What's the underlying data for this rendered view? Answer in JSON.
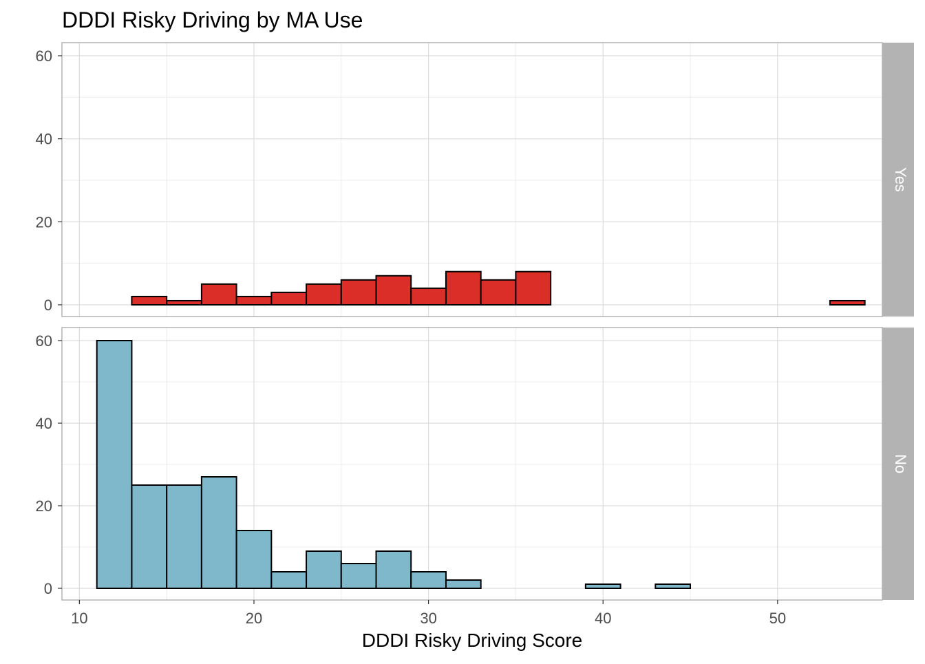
{
  "chart_data": {
    "type": "bar",
    "title": "DDDI Risky Driving by MA Use",
    "xlabel": "DDDI Risky Driving Score",
    "ylabel": "",
    "xlim": [
      10,
      55
    ],
    "ylim": [
      0,
      60
    ],
    "x_ticks": [
      10,
      20,
      30,
      40,
      50
    ],
    "y_ticks": [
      0,
      20,
      40,
      60
    ],
    "bin_edges": [
      11,
      13,
      15,
      17,
      19,
      21,
      23,
      25,
      27,
      29,
      31,
      33,
      35,
      37,
      39,
      41,
      43,
      45,
      47,
      49,
      51,
      53,
      55
    ],
    "grid": true,
    "legend": "none",
    "panels": [
      {
        "strip_label": "Yes",
        "color": "#dc2e29",
        "counts": [
          0,
          2,
          1,
          5,
          2,
          3,
          5,
          6,
          7,
          4,
          8,
          6,
          8,
          0,
          0,
          0,
          0,
          0,
          0,
          0,
          0,
          1
        ]
      },
      {
        "strip_label": "No",
        "color": "#80b8cb",
        "counts": [
          60,
          25,
          25,
          27,
          14,
          4,
          9,
          6,
          9,
          4,
          2,
          0,
          0,
          0,
          1,
          0,
          1,
          0,
          0,
          0,
          0,
          0
        ]
      }
    ]
  }
}
